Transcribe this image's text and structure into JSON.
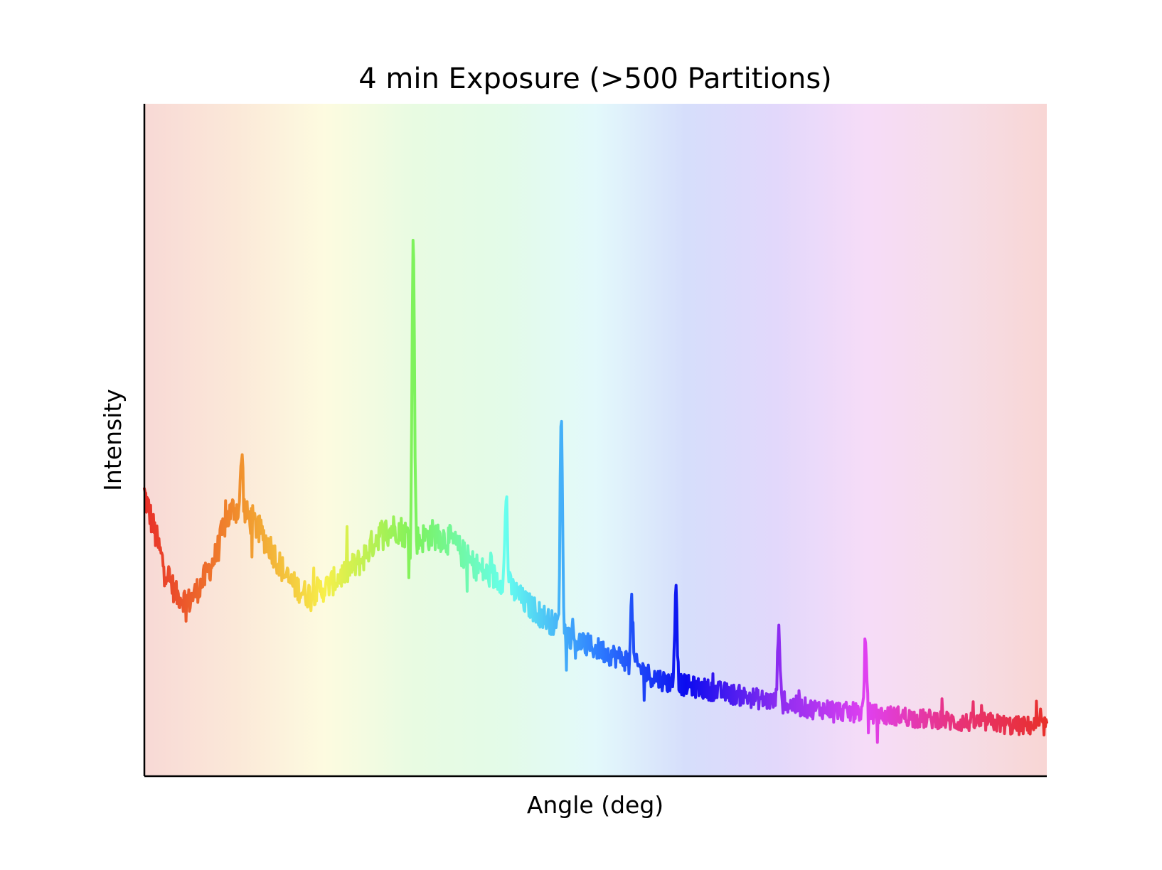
{
  "chart_data": {
    "type": "line",
    "title": "4 min Exposure (>500 Partitions)",
    "xlabel": "Angle (deg)",
    "ylabel": "Intensity",
    "x_ticks_visible": false,
    "y_ticks_visible": false,
    "grid": false,
    "legend": "none",
    "xlim": [
      0,
      1
    ],
    "ylim": [
      0,
      1
    ],
    "line_colormap": "rainbow (red → orange → yellow → green → cyan → blue → violet → magenta → red)",
    "background": "pastel rainbow gradient along x",
    "colors": {
      "spectrum": [
        "#e8302a",
        "#f08a2c",
        "#f7f04a",
        "#7cf25c",
        "#66ffee",
        "#2f80ff",
        "#0b0bef",
        "#8a2cf0",
        "#e040f0",
        "#e8327a",
        "#e8302a"
      ],
      "background": [
        "#f8d9d6",
        "#fbe8d8",
        "#fdfbe0",
        "#e8fbe2",
        "#e3fbe8",
        "#e3f9fb",
        "#d6defb",
        "#e2d8fb",
        "#f6dcf8",
        "#f6dde8",
        "#f8d6d4"
      ],
      "axes": "#000000"
    },
    "x": [
      0.0,
      0.02,
      0.035,
      0.05,
      0.065,
      0.08,
      0.09,
      0.1,
      0.12,
      0.14,
      0.16,
      0.18,
      0.2,
      0.22,
      0.24,
      0.26,
      0.28,
      0.3,
      0.32,
      0.34,
      0.36,
      0.38,
      0.4,
      0.42,
      0.44,
      0.46,
      0.48,
      0.5,
      0.52,
      0.54,
      0.56,
      0.58,
      0.6,
      0.62,
      0.64,
      0.66,
      0.68,
      0.7,
      0.72,
      0.74,
      0.76,
      0.78,
      0.8,
      0.82,
      0.84,
      0.86,
      0.88,
      0.9,
      0.92,
      0.94,
      0.96,
      0.98,
      1.0
    ],
    "y": [
      0.42,
      0.32,
      0.27,
      0.26,
      0.29,
      0.33,
      0.38,
      0.4,
      0.38,
      0.34,
      0.29,
      0.27,
      0.28,
      0.3,
      0.32,
      0.36,
      0.37,
      0.35,
      0.36,
      0.35,
      0.32,
      0.3,
      0.29,
      0.26,
      0.24,
      0.22,
      0.2,
      0.19,
      0.18,
      0.17,
      0.15,
      0.14,
      0.135,
      0.13,
      0.125,
      0.12,
      0.115,
      0.11,
      0.105,
      0.1,
      0.1,
      0.095,
      0.095,
      0.09,
      0.09,
      0.085,
      0.085,
      0.08,
      0.08,
      0.08,
      0.075,
      0.075,
      0.075
    ],
    "peaks": [
      {
        "x": 0.298,
        "y": 0.81
      },
      {
        "x": 0.462,
        "y": 0.55
      },
      {
        "x": 0.401,
        "y": 0.42
      },
      {
        "x": 0.108,
        "y": 0.48
      },
      {
        "x": 0.589,
        "y": 0.29
      },
      {
        "x": 0.703,
        "y": 0.23
      },
      {
        "x": 0.799,
        "y": 0.2
      },
      {
        "x": 0.54,
        "y": 0.26
      }
    ]
  }
}
